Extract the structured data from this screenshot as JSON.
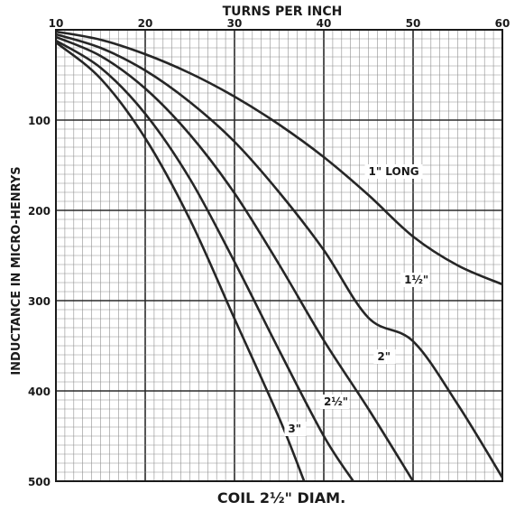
{
  "chart_data": {
    "type": "line",
    "title": "TURNS PER INCH",
    "caption": "COIL 2½\" DIAM.",
    "xlabel": "TURNS PER INCH",
    "ylabel": "INDUCTANCE IN MICRO-HENRYS",
    "xlim": [
      10,
      60
    ],
    "ylim": [
      0,
      500
    ],
    "y_inverted": true,
    "x_position": "top",
    "grid": true,
    "x_ticks": [
      "10",
      "20",
      "30",
      "40",
      "50",
      "60"
    ],
    "y_ticks": [
      "100",
      "200",
      "300",
      "400",
      "500"
    ],
    "series": [
      {
        "name": "1\" LONG",
        "x": [
          10,
          15,
          20,
          25,
          30,
          35,
          40,
          45,
          50,
          55,
          60
        ],
        "y": [
          2,
          11,
          27,
          48,
          74,
          105,
          141,
          183,
          229,
          261,
          282
        ]
      },
      {
        "name": "1½\"",
        "x": [
          10,
          15,
          20,
          25,
          30,
          35,
          40,
          45,
          50,
          55,
          60
        ],
        "y": [
          5,
          20,
          45,
          80,
          124,
          180,
          244,
          319,
          345,
          415,
          496
        ]
      },
      {
        "name": "2\"",
        "x": [
          10,
          15,
          20,
          25,
          30,
          35,
          40,
          45,
          50
        ],
        "y": [
          8,
          29,
          65,
          116,
          181,
          260,
          344,
          420,
          500
        ]
      },
      {
        "name": "2½\"",
        "x": [
          10,
          15,
          20,
          25,
          30,
          35,
          40,
          43.3
        ],
        "y": [
          12,
          42,
          93,
          165,
          257,
          355,
          450,
          500
        ]
      },
      {
        "name": "3\"",
        "x": [
          10,
          15,
          20,
          25,
          30,
          35,
          37.8
        ],
        "y": [
          14,
          54,
          120,
          210,
          320,
          430,
          500
        ]
      }
    ]
  }
}
